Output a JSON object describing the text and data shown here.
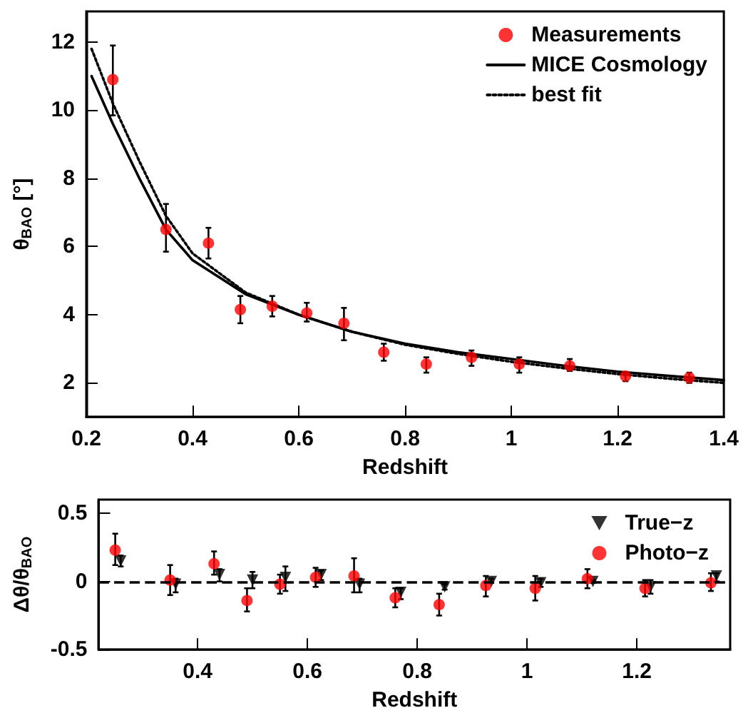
{
  "chart_data": [
    {
      "type": "scatter",
      "xlabel": "Redshift",
      "ylabel": "θ$_{BAO}$ [°]",
      "xlim": [
        0.2,
        1.4
      ],
      "xticks": [
        0.2,
        0.4,
        0.6,
        0.8,
        1,
        1.2,
        1.4
      ],
      "ylim": [
        1,
        12.9
      ],
      "yticks": [
        2,
        4,
        6,
        8,
        10,
        12
      ],
      "grid": false,
      "legend": "top right",
      "series": [
        {
          "name": "Measurements",
          "marker": "circle",
          "color": "#ff0000",
          "x": [
            0.25,
            0.35,
            0.43,
            0.49,
            0.55,
            0.615,
            0.685,
            0.76,
            0.84,
            0.925,
            1.015,
            1.11,
            1.215,
            1.335
          ],
          "values": [
            10.9,
            6.5,
            6.1,
            4.15,
            4.25,
            4.05,
            3.75,
            2.9,
            2.55,
            2.75,
            2.55,
            2.5,
            2.2,
            2.15
          ],
          "errors": [
            [
              9.85,
              11.9
            ],
            [
              5.85,
              7.25
            ],
            [
              5.65,
              6.55
            ],
            [
              3.75,
              4.55
            ],
            [
              3.95,
              4.55
            ],
            [
              3.8,
              4.35
            ],
            [
              3.25,
              4.2
            ],
            [
              2.65,
              3.15
            ],
            [
              2.3,
              2.75
            ],
            [
              2.5,
              2.95
            ],
            [
              2.3,
              2.75
            ],
            [
              2.35,
              2.7
            ],
            [
              2.05,
              2.3
            ],
            [
              2.0,
              2.3
            ]
          ]
        },
        {
          "name": "MICE Cosmology",
          "type": "line",
          "marker": "none",
          "line_style": "solid",
          "color": "#000000",
          "x": [
            0.21,
            0.25,
            0.3,
            0.35,
            0.4,
            0.5,
            0.6,
            0.7,
            0.8,
            0.9,
            1.0,
            1.1,
            1.2,
            1.3,
            1.4
          ],
          "values": [
            11.0,
            9.6,
            8.0,
            6.5,
            5.6,
            4.6,
            4.0,
            3.5,
            3.15,
            2.9,
            2.7,
            2.5,
            2.33,
            2.2,
            2.08
          ]
        },
        {
          "name": "best fit",
          "type": "line",
          "marker": "none",
          "line_style": "dotted",
          "color": "#000000",
          "x": [
            0.21,
            0.25,
            0.3,
            0.35,
            0.4,
            0.5,
            0.6,
            0.7,
            0.8,
            0.9,
            1.0,
            1.1,
            1.2,
            1.3,
            1.4
          ],
          "values": [
            11.8,
            10.2,
            8.5,
            6.9,
            5.8,
            4.65,
            4.0,
            3.5,
            3.12,
            2.85,
            2.62,
            2.43,
            2.26,
            2.12,
            2.0
          ]
        }
      ]
    },
    {
      "type": "scatter",
      "xlabel": "Redshift",
      "ylabel": "Δθ/θ$_{BAO}$",
      "xlim": [
        0.22,
        1.37
      ],
      "xticks": [
        0.4,
        0.6,
        0.8,
        1,
        1.2
      ],
      "ylim": [
        -0.5,
        0.6
      ],
      "yticks": [
        -0.5,
        0,
        0.5
      ],
      "grid": false,
      "legend": "top right",
      "ref_lines": [
        {
          "axis": "y",
          "value": 0,
          "line_style": "dashed",
          "color": "#000000"
        }
      ],
      "series": [
        {
          "name": "True−z",
          "marker": "triangle",
          "color": "#000000",
          "x": [
            0.26,
            0.36,
            0.44,
            0.5,
            0.56,
            0.625,
            0.695,
            0.77,
            0.85,
            0.935,
            1.025,
            1.12,
            1.225,
            1.345
          ],
          "values": [
            0.15,
            -0.02,
            0.05,
            0.01,
            0.03,
            0.05,
            -0.02,
            -0.08,
            -0.04,
            0.0,
            -0.01,
            0.0,
            -0.04,
            0.04
          ],
          "errors": [
            [
              0.11,
              0.19
            ],
            [
              -0.08,
              0.02
            ],
            [
              0.0,
              0.09
            ],
            [
              -0.05,
              0.07
            ],
            [
              -0.07,
              0.11
            ],
            [
              0.01,
              0.08
            ],
            [
              -0.08,
              0.02
            ],
            [
              -0.13,
              -0.05
            ],
            [
              -0.06,
              -0.02
            ],
            [
              -0.01,
              0.02
            ],
            [
              -0.04,
              0.02
            ],
            [
              -0.01,
              0.01
            ],
            [
              -0.09,
              0.01
            ],
            [
              0.0,
              0.06
            ]
          ]
        },
        {
          "name": "Photo−z",
          "marker": "circle",
          "color": "#ff0000",
          "x": [
            0.25,
            0.35,
            0.43,
            0.49,
            0.55,
            0.615,
            0.685,
            0.76,
            0.84,
            0.925,
            1.015,
            1.11,
            1.215,
            1.335
          ],
          "values": [
            0.23,
            0.01,
            0.13,
            -0.14,
            -0.02,
            0.03,
            0.04,
            -0.12,
            -0.17,
            -0.03,
            -0.05,
            0.02,
            -0.05,
            -0.01
          ],
          "errors": [
            [
              0.12,
              0.35
            ],
            [
              -0.1,
              0.12
            ],
            [
              0.05,
              0.22
            ],
            [
              -0.22,
              -0.05
            ],
            [
              -0.09,
              0.05
            ],
            [
              -0.04,
              0.1
            ],
            [
              -0.08,
              0.17
            ],
            [
              -0.19,
              -0.05
            ],
            [
              -0.25,
              -0.09
            ],
            [
              -0.11,
              0.04
            ],
            [
              -0.14,
              0.04
            ],
            [
              -0.05,
              0.09
            ],
            [
              -0.11,
              0.01
            ],
            [
              -0.07,
              0.06
            ]
          ]
        }
      ]
    }
  ]
}
